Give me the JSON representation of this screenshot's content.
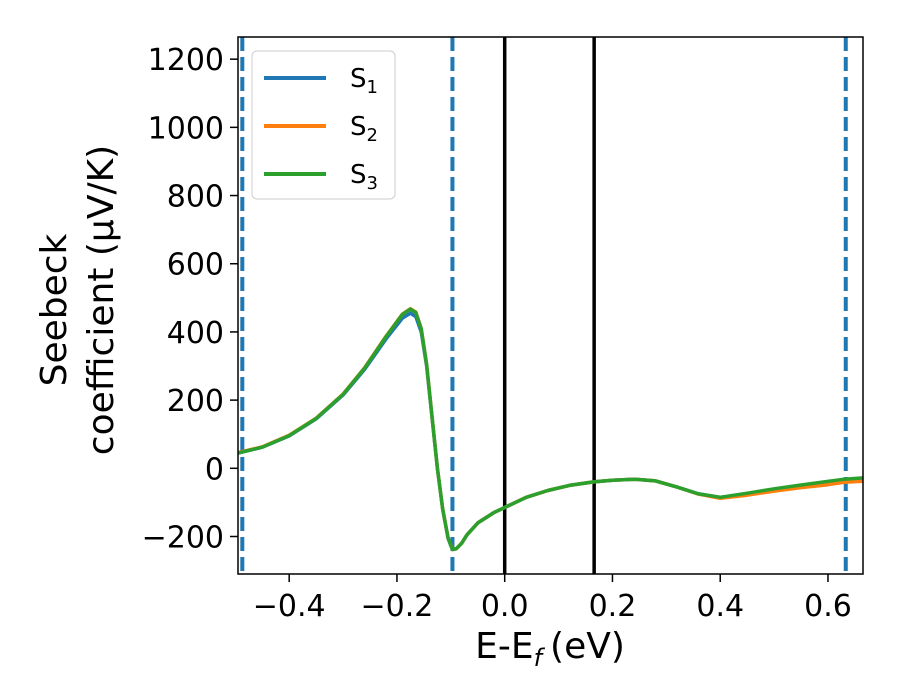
{
  "chart_data": {
    "type": "line",
    "xlabel": "E-E",
    "xlabel_sub": "f",
    "xlabel_unit": "(eV)",
    "ylabel_line1": "Seebeck",
    "ylabel_line2": "coefficient  (μV/K)",
    "xlim": [
      -0.495,
      0.665
    ],
    "ylim": [
      -310,
      1265
    ],
    "xticks": [
      -0.4,
      -0.2,
      0.0,
      0.2,
      0.4,
      0.6
    ],
    "xtick_labels": [
      "−0.4",
      "−0.2",
      "0.0",
      "0.2",
      "0.4",
      "0.6"
    ],
    "yticks": [
      -200,
      0,
      200,
      400,
      600,
      800,
      1000,
      1200
    ],
    "ytick_labels": [
      "−200",
      "0",
      "200",
      "400",
      "600",
      "800",
      "1000",
      "1200"
    ],
    "grid": false,
    "legend_position": "top-left",
    "series": [
      {
        "name": "S",
        "sub": "1",
        "color": "#1f77b4",
        "x": [
          -0.495,
          -0.45,
          -0.4,
          -0.35,
          -0.3,
          -0.26,
          -0.22,
          -0.19,
          -0.175,
          -0.165,
          -0.155,
          -0.145,
          -0.135,
          -0.125,
          -0.115,
          -0.105,
          -0.097,
          -0.09,
          -0.08,
          -0.07,
          -0.05,
          -0.02,
          0.0,
          0.04,
          0.08,
          0.12,
          0.165,
          0.2,
          0.24,
          0.28,
          0.32,
          0.36,
          0.4,
          0.45,
          0.5,
          0.55,
          0.6,
          0.63,
          0.665
        ],
        "y": [
          45,
          62,
          95,
          145,
          215,
          290,
          380,
          440,
          455,
          445,
          400,
          300,
          150,
          0,
          -120,
          -205,
          -238,
          -236,
          -220,
          -195,
          -160,
          -130,
          -115,
          -85,
          -65,
          -50,
          -40,
          -35,
          -32,
          -37,
          -55,
          -75,
          -85,
          -75,
          -62,
          -52,
          -42,
          -35,
          -32
        ]
      },
      {
        "name": "S",
        "sub": "2",
        "color": "#ff7f0e",
        "x": [
          -0.495,
          -0.45,
          -0.4,
          -0.35,
          -0.3,
          -0.26,
          -0.22,
          -0.19,
          -0.175,
          -0.165,
          -0.155,
          -0.145,
          -0.135,
          -0.125,
          -0.115,
          -0.105,
          -0.097,
          -0.09,
          -0.08,
          -0.07,
          -0.05,
          -0.02,
          0.0,
          0.04,
          0.08,
          0.12,
          0.165,
          0.2,
          0.24,
          0.28,
          0.32,
          0.36,
          0.4,
          0.45,
          0.5,
          0.55,
          0.6,
          0.63,
          0.665
        ],
        "y": [
          46,
          63,
          97,
          147,
          218,
          295,
          388,
          452,
          468,
          458,
          410,
          305,
          152,
          0,
          -120,
          -205,
          -238,
          -236,
          -220,
          -195,
          -160,
          -130,
          -115,
          -85,
          -65,
          -50,
          -40,
          -35,
          -32,
          -37,
          -55,
          -76,
          -88,
          -79,
          -67,
          -57,
          -48,
          -41,
          -38
        ]
      },
      {
        "name": "S",
        "sub": "3",
        "color": "#2ca02c",
        "x": [
          -0.495,
          -0.45,
          -0.4,
          -0.35,
          -0.3,
          -0.26,
          -0.22,
          -0.19,
          -0.175,
          -0.165,
          -0.155,
          -0.145,
          -0.135,
          -0.125,
          -0.115,
          -0.105,
          -0.097,
          -0.09,
          -0.08,
          -0.07,
          -0.05,
          -0.02,
          0.0,
          0.04,
          0.08,
          0.12,
          0.165,
          0.2,
          0.24,
          0.28,
          0.32,
          0.36,
          0.4,
          0.45,
          0.5,
          0.55,
          0.6,
          0.63,
          0.665
        ],
        "y": [
          45,
          62,
          96,
          146,
          217,
          294,
          387,
          451,
          467,
          457,
          410,
          305,
          152,
          0,
          -120,
          -205,
          -238,
          -236,
          -220,
          -195,
          -160,
          -130,
          -115,
          -85,
          -65,
          -50,
          -40,
          -35,
          -32,
          -37,
          -55,
          -75,
          -85,
          -73,
          -60,
          -49,
          -38,
          -32,
          -28
        ]
      }
    ],
    "vertical_lines": [
      {
        "x": -0.487,
        "style": "dashed",
        "color": "#1f77b4"
      },
      {
        "x": -0.097,
        "style": "dashed",
        "color": "#1f77b4"
      },
      {
        "x": 0.0,
        "style": "solid",
        "color": "#000000"
      },
      {
        "x": 0.166,
        "style": "solid",
        "color": "#000000"
      },
      {
        "x": 0.633,
        "style": "dashed",
        "color": "#1f77b4"
      }
    ]
  }
}
